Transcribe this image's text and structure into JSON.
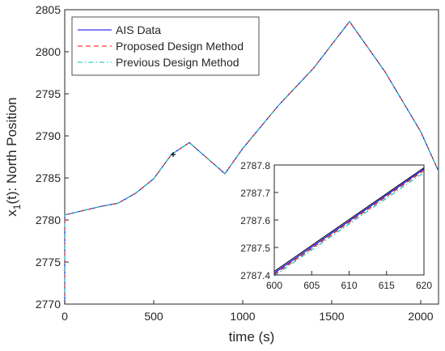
{
  "chart_data": [
    {
      "type": "line",
      "xlabel": "time (s)",
      "ylabel": "x",
      "ylabel_subscript": "1",
      "ylabel_rest": "(t): North Position",
      "xlim": [
        0,
        2100
      ],
      "ylim": [
        2770,
        2805
      ],
      "xticks": [
        0,
        500,
        1000,
        1500,
        2000
      ],
      "yticks": [
        2770,
        2775,
        2780,
        2785,
        2790,
        2795,
        2800,
        2805
      ],
      "legend_position": "top-left",
      "grid": false,
      "series": [
        {
          "name": "AIS Data",
          "color": "#0000ff",
          "style": "solid",
          "x": [
            0,
            0,
            200,
            300,
            400,
            500,
            600,
            700,
            900,
            1000,
            1200,
            1400,
            1600,
            1800,
            2000,
            2100
          ],
          "y": [
            2770,
            2780.6,
            2781.6,
            2782,
            2783.2,
            2784.9,
            2787.8,
            2789.2,
            2785.5,
            2788.5,
            2793.6,
            2798.1,
            2803.6,
            2797.6,
            2790.5,
            2785.8
          ]
        },
        {
          "name": "Proposed Design Method",
          "color": "#ff0000",
          "style": "dashed",
          "x": [
            0,
            0,
            200,
            300,
            400,
            500,
            600,
            700,
            900,
            1000,
            1200,
            1400,
            1600,
            1800,
            2000,
            2100
          ],
          "y": [
            2770,
            2780.6,
            2781.6,
            2782,
            2783.2,
            2784.9,
            2787.8,
            2789.2,
            2785.5,
            2788.5,
            2793.6,
            2798.1,
            2803.6,
            2797.6,
            2790.5,
            2785.8
          ]
        },
        {
          "name": "Previous Design Method",
          "color": "#00bfbf",
          "style": "dashdot",
          "x": [
            0,
            0,
            200,
            300,
            400,
            500,
            600,
            700,
            900,
            1000,
            1200,
            1400,
            1600,
            1800,
            2000,
            2100
          ],
          "y": [
            2770,
            2780.6,
            2781.6,
            2782,
            2783.2,
            2784.9,
            2787.8,
            2789.2,
            2785.5,
            2788.5,
            2793.6,
            2798.1,
            2803.6,
            2797.6,
            2790.5,
            2785.8
          ]
        }
      ]
    },
    {
      "type": "line",
      "xlim": [
        600,
        620
      ],
      "ylim": [
        2787.4,
        2787.8
      ],
      "xticks": [
        600,
        605,
        610,
        615,
        620
      ],
      "yticks": [
        2787.4,
        2787.5,
        2787.6,
        2787.7,
        2787.8
      ],
      "series": [
        {
          "color": "#000000",
          "style": "solid",
          "x": [
            600,
            620
          ],
          "y": [
            2787.413,
            2787.79
          ]
        },
        {
          "color": "#0000ff",
          "style": "solid",
          "x": [
            600,
            620
          ],
          "y": [
            2787.407,
            2787.785
          ]
        },
        {
          "color": "#ff0000",
          "style": "dashed",
          "x": [
            600,
            620
          ],
          "y": [
            2787.402,
            2787.78
          ]
        },
        {
          "color": "#00bfbf",
          "style": "dashdot",
          "x": [
            600,
            620
          ],
          "y": [
            2787.397,
            2787.773
          ]
        }
      ]
    }
  ]
}
